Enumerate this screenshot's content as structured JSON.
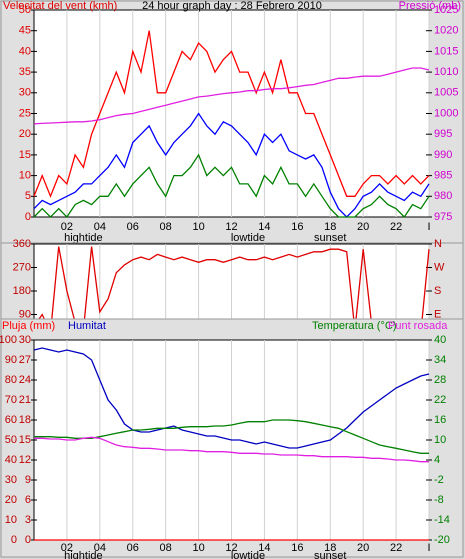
{
  "chart_data": [
    {
      "type": "line",
      "title": "24 hour graph day : 28 Febrero 2010",
      "ylabel": "Velocitat del vent (kmh)",
      "y2label": "Pressió (mb)",
      "xlim": [
        0,
        24
      ],
      "xticks": [
        {
          "value": 2,
          "label": "02"
        },
        {
          "value": 4,
          "label": "04"
        },
        {
          "value": 6,
          "label": "06"
        },
        {
          "value": 8,
          "label": "08"
        },
        {
          "value": 10,
          "label": "10"
        },
        {
          "value": 12,
          "label": "12"
        },
        {
          "value": 14,
          "label": "14"
        },
        {
          "value": 16,
          "label": "16"
        },
        {
          "value": 18,
          "label": "18"
        },
        {
          "value": 20,
          "label": "20"
        },
        {
          "value": 22,
          "label": "22"
        },
        {
          "value": 24,
          "label": "I"
        }
      ],
      "grid": "x",
      "ylim": [
        0,
        50
      ],
      "yticks": [
        0,
        5,
        10,
        15,
        20,
        25,
        30,
        35,
        40,
        45,
        50
      ],
      "ytick_color": "#e00000",
      "y2lim": [
        975,
        1025
      ],
      "y2ticks": [
        975,
        980,
        985,
        990,
        995,
        1000,
        1005,
        1010,
        1015,
        1020,
        1025
      ],
      "y2tick_color": "#d000d0",
      "annotations": [
        {
          "text": "hightide",
          "x": 3
        },
        {
          "text": "lowtide",
          "x": 13
        },
        {
          "text": "sunset",
          "x": 18
        }
      ],
      "x": [
        0,
        0.5,
        1,
        1.5,
        2,
        2.5,
        3,
        3.5,
        4,
        4.5,
        5,
        5.5,
        6,
        6.5,
        7,
        7.5,
        8,
        8.5,
        9,
        9.5,
        10,
        10.5,
        11,
        11.5,
        12,
        12.5,
        13,
        13.5,
        14,
        14.5,
        15,
        15.5,
        16,
        16.5,
        17,
        17.5,
        18,
        18.5,
        19,
        19.5,
        20,
        20.5,
        21,
        21.5,
        22,
        22.5,
        23,
        23.5,
        24
      ],
      "series": [
        {
          "color": "#ff0000",
          "values": [
            5,
            10,
            5,
            10,
            8,
            15,
            12,
            20,
            25,
            30,
            35,
            30,
            40,
            35,
            45,
            30,
            30,
            35,
            40,
            38,
            42,
            40,
            35,
            38,
            40,
            35,
            35,
            30,
            35,
            30,
            38,
            30,
            30,
            25,
            25,
            20,
            15,
            10,
            5,
            5,
            8,
            10,
            10,
            8,
            10,
            8,
            10,
            8,
            10
          ]
        },
        {
          "color": "#0000ff",
          "values": [
            2,
            4,
            3,
            4,
            5,
            6,
            8,
            8,
            10,
            12,
            15,
            12,
            18,
            20,
            22,
            18,
            15,
            18,
            20,
            22,
            25,
            22,
            20,
            23,
            22,
            20,
            18,
            15,
            20,
            18,
            20,
            16,
            15,
            14,
            15,
            12,
            6,
            2,
            0,
            2,
            5,
            6,
            8,
            6,
            5,
            4,
            6,
            5,
            8
          ]
        },
        {
          "color": "#008000",
          "values": [
            0,
            2,
            0,
            2,
            0,
            3,
            4,
            3,
            5,
            5,
            8,
            5,
            8,
            10,
            12,
            8,
            5,
            10,
            10,
            12,
            15,
            10,
            12,
            10,
            12,
            8,
            8,
            5,
            10,
            8,
            12,
            8,
            8,
            5,
            8,
            5,
            2,
            0,
            0,
            0,
            2,
            3,
            5,
            3,
            2,
            0,
            3,
            2,
            5
          ]
        },
        {
          "color": "#e020e0",
          "axis": "y2",
          "values": [
            997.5,
            997.6,
            997.7,
            997.8,
            997.9,
            998,
            998,
            998.2,
            998.5,
            999,
            999.5,
            999.8,
            1000,
            1000.5,
            1001,
            1001.5,
            1002,
            1002.5,
            1003,
            1003.5,
            1004,
            1004.2,
            1004.5,
            1004.8,
            1005,
            1005.2,
            1005.5,
            1005.5,
            1005.8,
            1006,
            1006,
            1006.2,
            1006.5,
            1006.8,
            1007,
            1007.5,
            1008,
            1008.5,
            1008.5,
            1008.8,
            1009,
            1009,
            1009,
            1009.5,
            1010,
            1010.5,
            1011,
            1011,
            1010.5
          ]
        }
      ]
    },
    {
      "type": "line",
      "xlim": [
        0,
        24
      ],
      "xticks": [
        {
          "value": 2,
          "label": "02"
        },
        {
          "value": 4,
          "label": "04"
        },
        {
          "value": 6,
          "label": "06"
        },
        {
          "value": 8,
          "label": "08"
        },
        {
          "value": 10,
          "label": "10"
        },
        {
          "value": 12,
          "label": "12"
        },
        {
          "value": 14,
          "label": "14"
        },
        {
          "value": 16,
          "label": "16"
        },
        {
          "value": 18,
          "label": "18"
        },
        {
          "value": 20,
          "label": "20"
        },
        {
          "value": 22,
          "label": "22"
        },
        {
          "value": 24,
          "label": "I"
        }
      ],
      "grid": "x",
      "ylim": [
        0,
        360
      ],
      "yticks": [
        0,
        90,
        180,
        270,
        360
      ],
      "ytick_color": "#c00000",
      "y2lim": [
        0,
        360
      ],
      "y2ticks": [
        {
          "value": 0,
          "label": "N"
        },
        {
          "value": 90,
          "label": "E"
        },
        {
          "value": 180,
          "label": "S"
        },
        {
          "value": 270,
          "label": "W"
        },
        {
          "value": 360,
          "label": "N"
        }
      ],
      "y2tick_color": "#c00000",
      "x": [
        0,
        0.5,
        1,
        1.5,
        2,
        2.5,
        3,
        3.5,
        4,
        4.5,
        5,
        5.5,
        6,
        6.5,
        7,
        7.5,
        8,
        8.5,
        9,
        9.5,
        10,
        10.5,
        11,
        11.5,
        12,
        12.5,
        13,
        13.5,
        14,
        14.5,
        15,
        15.5,
        16,
        16.5,
        17,
        17.5,
        18,
        18.5,
        19,
        19.5,
        20,
        20.5,
        21,
        21.5,
        22,
        22.5,
        23,
        23.5,
        24
      ],
      "series": [
        {
          "color": "#e00000",
          "values": [
            45,
            90,
            20,
            350,
            180,
            60,
            30,
            350,
            100,
            150,
            250,
            280,
            300,
            310,
            300,
            320,
            310,
            300,
            310,
            300,
            290,
            300,
            300,
            290,
            300,
            310,
            300,
            300,
            310,
            300,
            310,
            320,
            310,
            320,
            330,
            330,
            340,
            340,
            330,
            30,
            340,
            60,
            30,
            20,
            50,
            10,
            40,
            20,
            340
          ]
        }
      ]
    },
    {
      "type": "line",
      "xlim": [
        0,
        24
      ],
      "xticks": [
        {
          "value": 2,
          "label": "02"
        },
        {
          "value": 4,
          "label": "04"
        },
        {
          "value": 6,
          "label": "06"
        },
        {
          "value": 8,
          "label": "08"
        },
        {
          "value": 10,
          "label": "10"
        },
        {
          "value": 12,
          "label": "12"
        },
        {
          "value": 14,
          "label": "14"
        },
        {
          "value": 16,
          "label": "16"
        },
        {
          "value": 18,
          "label": "18"
        },
        {
          "value": 20,
          "label": "20"
        },
        {
          "value": 22,
          "label": "22"
        },
        {
          "value": 24,
          "label": "I"
        }
      ],
      "grid": "x",
      "ylim": [
        0,
        100
      ],
      "yticks": [
        0,
        10,
        20,
        30,
        40,
        50,
        60,
        70,
        80,
        90,
        100
      ],
      "ytick_color": "#c00000",
      "y3lim": [
        0,
        30
      ],
      "y3ticks": [
        0,
        3,
        6,
        9,
        12,
        15,
        18,
        21,
        24,
        27,
        30
      ],
      "y3tick_color": "#c00000",
      "y2lim": [
        -20,
        40
      ],
      "y2ticks": [
        -20,
        -14,
        -8,
        -2,
        4,
        10,
        16,
        22,
        28,
        34,
        40
      ],
      "y2tick_color": "#008000",
      "annotations": [
        {
          "text": "hightide",
          "x": 3
        },
        {
          "text": "lowtide",
          "x": 13
        },
        {
          "text": "sunset",
          "x": 18
        }
      ],
      "x": [
        0,
        0.5,
        1,
        1.5,
        2,
        2.5,
        3,
        3.5,
        4,
        4.5,
        5,
        5.5,
        6,
        6.5,
        7,
        7.5,
        8,
        8.5,
        9,
        9.5,
        10,
        10.5,
        11,
        11.5,
        12,
        12.5,
        13,
        13.5,
        14,
        14.5,
        15,
        15.5,
        16,
        16.5,
        17,
        17.5,
        18,
        18.5,
        19,
        19.5,
        20,
        20.5,
        21,
        21.5,
        22,
        22.5,
        23,
        23.5,
        24
      ],
      "series": [
        {
          "name": "Pluja (mm)",
          "color": "#ff0000",
          "axis": "y3",
          "values": [
            0,
            0,
            0,
            0,
            0,
            0,
            0,
            0,
            0,
            0,
            0,
            0,
            0,
            0,
            0,
            0,
            0,
            0,
            0,
            0,
            0,
            0,
            0,
            0,
            0,
            0,
            0,
            0,
            0,
            0,
            0,
            0,
            0,
            0,
            0,
            0,
            0,
            0,
            0,
            0,
            0,
            0,
            0,
            0,
            0,
            0,
            0,
            0,
            0
          ]
        },
        {
          "name": "Humitat",
          "color": "#0000c0",
          "values": [
            95,
            96,
            95,
            94,
            95,
            94,
            93,
            90,
            80,
            70,
            65,
            58,
            55,
            54,
            54,
            55,
            56,
            57,
            55,
            54,
            53,
            52,
            52,
            51,
            50,
            50,
            49,
            48,
            49,
            48,
            47,
            46,
            46,
            47,
            48,
            49,
            50,
            53,
            56,
            60,
            64,
            67,
            70,
            73,
            76,
            78,
            80,
            82,
            83
          ]
        },
        {
          "name": "Temperatura (°C)",
          "color": "#008000",
          "axis": "y2",
          "values": [
            11,
            11,
            11,
            10.8,
            10.8,
            10.5,
            10.5,
            10.5,
            11,
            11.5,
            12,
            12.5,
            13,
            13,
            13.2,
            13.5,
            13.5,
            13.5,
            13.8,
            14,
            14,
            14,
            14.2,
            14.2,
            14.5,
            15,
            15.5,
            15.5,
            15.5,
            16,
            16,
            16,
            15.8,
            15.5,
            15,
            14.5,
            14,
            13.5,
            12.5,
            11.5,
            10.5,
            9.5,
            8.5,
            8,
            7.5,
            7,
            6.5,
            6,
            6
          ]
        },
        {
          "name": "Punt rosada",
          "color": "#e020e0",
          "axis": "y2",
          "values": [
            10.5,
            10.5,
            10.3,
            10.3,
            10,
            10,
            10.5,
            10.8,
            10.5,
            9.5,
            8.5,
            8,
            7.8,
            7.5,
            7.5,
            7.3,
            7,
            7,
            7,
            6.8,
            6.8,
            6.5,
            6.5,
            6.5,
            6.3,
            6,
            6,
            6,
            5.8,
            5.8,
            5.5,
            5.5,
            5.5,
            5.3,
            5.3,
            5,
            5,
            5,
            5,
            4.8,
            4.8,
            4.5,
            4.5,
            4.3,
            4,
            4,
            3.8,
            3.5,
            3.5
          ]
        }
      ]
    }
  ]
}
